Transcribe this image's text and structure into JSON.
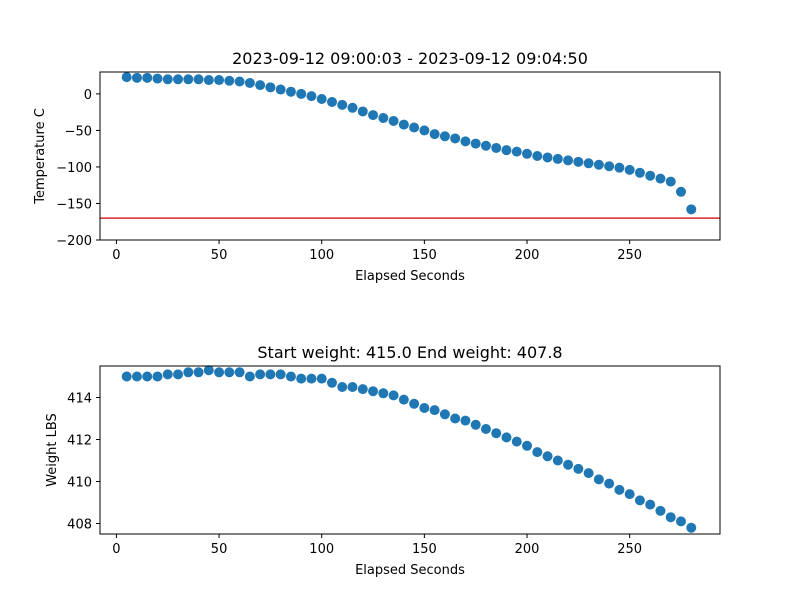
{
  "chart_data": [
    {
      "type": "scatter",
      "title": "2023-09-12 09:00:03 - 2023-09-12 09:04:50",
      "xlabel": "Elapsed Seconds",
      "ylabel": "Temperature C",
      "xlim": [
        -8,
        294
      ],
      "ylim": [
        -200,
        30
      ],
      "xticks": [
        0,
        50,
        100,
        150,
        200,
        250
      ],
      "yticks": [
        -200,
        -150,
        -100,
        -50,
        0
      ],
      "grid": false,
      "marker_color": "#1f77b4",
      "reference_line": {
        "y": -170,
        "color": "#d62728"
      },
      "x": [
        5,
        10,
        15,
        20,
        25,
        30,
        35,
        40,
        45,
        50,
        55,
        60,
        65,
        70,
        75,
        80,
        85,
        90,
        95,
        100,
        105,
        110,
        115,
        120,
        125,
        130,
        135,
        140,
        145,
        150,
        155,
        160,
        165,
        170,
        175,
        180,
        185,
        190,
        195,
        200,
        205,
        210,
        215,
        220,
        225,
        230,
        235,
        240,
        245,
        250,
        255,
        260,
        265,
        270,
        275,
        280
      ],
      "y": [
        23,
        22,
        22,
        21,
        20,
        20,
        20,
        20,
        19,
        19,
        18,
        17,
        15,
        12,
        9,
        6,
        3,
        0,
        -3,
        -7,
        -11,
        -15,
        -19,
        -24,
        -29,
        -33,
        -37,
        -42,
        -46,
        -50,
        -55,
        -58,
        -61,
        -65,
        -68,
        -71,
        -74,
        -77,
        -79,
        -82,
        -85,
        -87,
        -89,
        -91,
        -93,
        -95,
        -97,
        -99,
        -101,
        -104,
        -108,
        -112,
        -116,
        -120,
        -134,
        -158
      ]
    },
    {
      "type": "scatter",
      "title": "Start weight: 415.0 End weight: 407.8",
      "xlabel": "Elapsed Seconds",
      "ylabel": "Weight LBS",
      "xlim": [
        -8,
        294
      ],
      "ylim": [
        407.5,
        415.5
      ],
      "xticks": [
        0,
        50,
        100,
        150,
        200,
        250
      ],
      "yticks": [
        408,
        410,
        412,
        414
      ],
      "grid": false,
      "marker_color": "#1f77b4",
      "x": [
        5,
        10,
        15,
        20,
        25,
        30,
        35,
        40,
        45,
        50,
        55,
        60,
        65,
        70,
        75,
        80,
        85,
        90,
        95,
        100,
        105,
        110,
        115,
        120,
        125,
        130,
        135,
        140,
        145,
        150,
        155,
        160,
        165,
        170,
        175,
        180,
        185,
        190,
        195,
        200,
        205,
        210,
        215,
        220,
        225,
        230,
        235,
        240,
        245,
        250,
        255,
        260,
        265,
        270,
        275,
        280
      ],
      "y": [
        415.0,
        415.0,
        415.0,
        415.0,
        415.1,
        415.1,
        415.2,
        415.2,
        415.3,
        415.2,
        415.2,
        415.2,
        415.0,
        415.1,
        415.1,
        415.1,
        415.0,
        414.9,
        414.9,
        414.9,
        414.7,
        414.5,
        414.5,
        414.4,
        414.3,
        414.2,
        414.1,
        413.9,
        413.7,
        413.5,
        413.4,
        413.2,
        413.0,
        412.9,
        412.7,
        412.5,
        412.3,
        412.1,
        411.9,
        411.7,
        411.4,
        411.2,
        411.0,
        410.8,
        410.6,
        410.4,
        410.1,
        409.9,
        409.6,
        409.4,
        409.1,
        408.9,
        408.6,
        408.3,
        408.1,
        407.8
      ]
    }
  ]
}
